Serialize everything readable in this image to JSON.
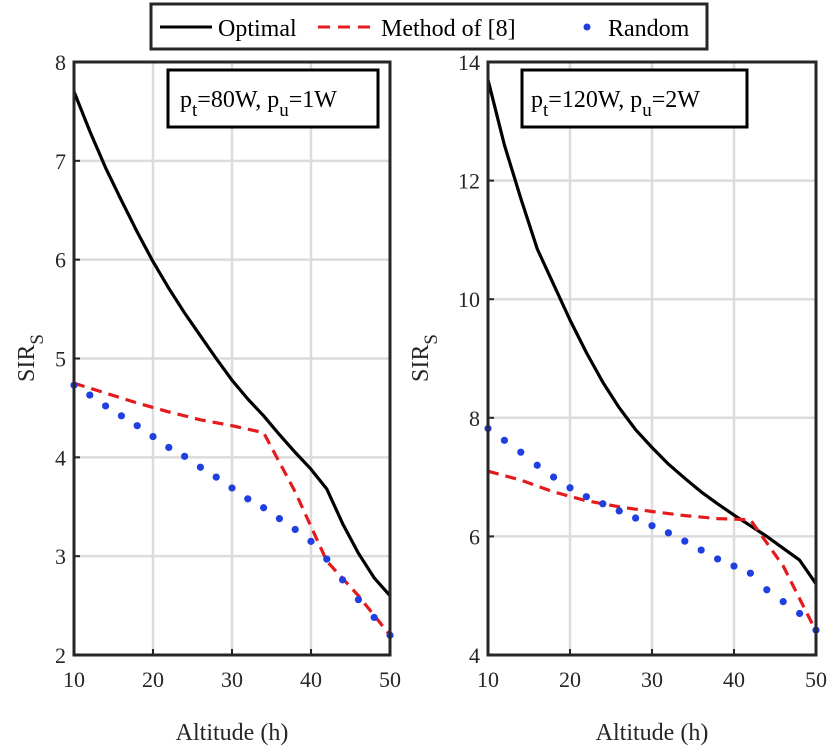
{
  "legend": {
    "entries": [
      {
        "label": "Optimal",
        "style": "solid",
        "color": "#000000"
      },
      {
        "label": "Method of [8]",
        "style": "dashed",
        "color": "#e41a1c"
      },
      {
        "label": "Random",
        "style": "dotted",
        "color": "#1f3fe0"
      }
    ]
  },
  "chart_data": [
    {
      "type": "line",
      "xlabel": "Altitude (h)",
      "ylabel_main": "SIR",
      "ylabel_sub": "S",
      "xlim": [
        10,
        50
      ],
      "ylim": [
        2,
        8
      ],
      "xticks": [
        "10",
        "20",
        "30",
        "40",
        "50"
      ],
      "yticks": [
        "2",
        "3",
        "4",
        "5",
        "6",
        "7",
        "8"
      ],
      "annotation": {
        "p1": "p",
        "s1": "t",
        "v1": "=80W, ",
        "p2": "p",
        "s2": "u",
        "v2": "=1W"
      },
      "grid": true,
      "series": [
        {
          "name": "Optimal",
          "x": [
            10,
            12,
            14,
            16,
            18,
            20,
            22,
            24,
            26,
            28,
            30,
            32,
            34,
            36,
            38,
            40,
            42,
            44,
            46,
            48,
            50
          ],
          "y": [
            7.7,
            7.3,
            6.93,
            6.6,
            6.28,
            5.98,
            5.71,
            5.46,
            5.23,
            5.0,
            4.78,
            4.59,
            4.42,
            4.23,
            4.05,
            3.88,
            3.68,
            3.33,
            3.03,
            2.78,
            2.6
          ]
        },
        {
          "name": "Method of [8]",
          "x": [
            10,
            14,
            18,
            22,
            26,
            30,
            34,
            38,
            42,
            46,
            50
          ],
          "y": [
            4.75,
            4.65,
            4.55,
            4.46,
            4.38,
            4.32,
            4.25,
            3.65,
            2.95,
            2.6,
            2.2
          ]
        },
        {
          "name": "Random",
          "x": [
            10,
            12,
            14,
            16,
            18,
            20,
            22,
            24,
            26,
            28,
            30,
            32,
            34,
            36,
            38,
            40,
            42,
            44,
            46,
            48,
            50
          ],
          "y": [
            4.73,
            4.63,
            4.52,
            4.42,
            4.32,
            4.21,
            4.1,
            4.01,
            3.9,
            3.8,
            3.69,
            3.58,
            3.49,
            3.38,
            3.27,
            3.15,
            2.97,
            2.76,
            2.56,
            2.38,
            2.2
          ]
        }
      ]
    },
    {
      "type": "line",
      "xlabel": "Altitude (h)",
      "ylabel_main": "SIR",
      "ylabel_sub": "S",
      "xlim": [
        10,
        50
      ],
      "ylim": [
        4,
        14
      ],
      "xticks": [
        "10",
        "20",
        "30",
        "40",
        "50"
      ],
      "yticks": [
        "4",
        "6",
        "8",
        "10",
        "12",
        "14"
      ],
      "annotation": {
        "p1": "p",
        "s1": "t",
        "v1": "=120W, ",
        "p2": "p",
        "s2": "u",
        "v2": "=2W"
      },
      "grid": true,
      "series": [
        {
          "name": "Optimal",
          "x": [
            10,
            12,
            14,
            16,
            18,
            20,
            22,
            24,
            26,
            28,
            30,
            32,
            34,
            36,
            38,
            40,
            42,
            44,
            46,
            48,
            50
          ],
          "y": [
            13.7,
            12.6,
            11.7,
            10.85,
            10.25,
            9.65,
            9.1,
            8.6,
            8.17,
            7.8,
            7.5,
            7.22,
            6.98,
            6.75,
            6.55,
            6.36,
            6.18,
            6.0,
            5.8,
            5.6,
            5.2
          ]
        },
        {
          "name": "Method of [8]",
          "x": [
            10,
            14,
            18,
            22,
            26,
            30,
            34,
            38,
            42,
            46,
            50
          ],
          "y": [
            7.1,
            6.95,
            6.75,
            6.6,
            6.5,
            6.42,
            6.35,
            6.3,
            6.28,
            5.5,
            4.4
          ]
        },
        {
          "name": "Random",
          "x": [
            10,
            12,
            14,
            16,
            18,
            20,
            22,
            24,
            26,
            28,
            30,
            32,
            34,
            36,
            38,
            40,
            42,
            44,
            46,
            48,
            50
          ],
          "y": [
            7.82,
            7.62,
            7.42,
            7.2,
            7.0,
            6.82,
            6.67,
            6.55,
            6.43,
            6.31,
            6.18,
            6.06,
            5.92,
            5.77,
            5.62,
            5.5,
            5.38,
            5.1,
            4.9,
            4.7,
            4.42
          ]
        }
      ]
    }
  ]
}
